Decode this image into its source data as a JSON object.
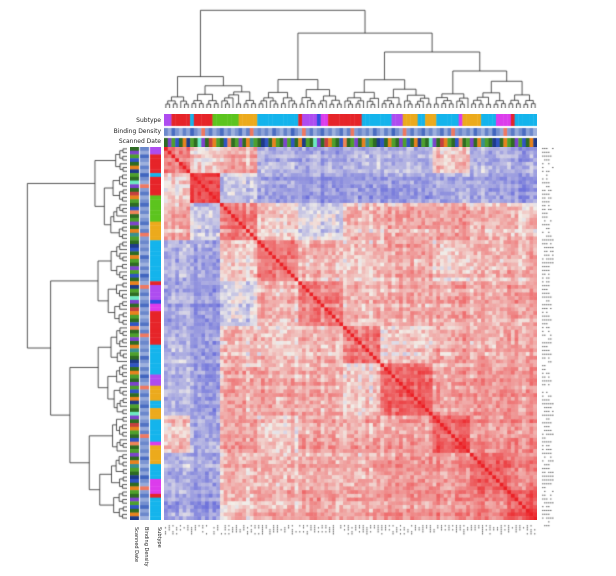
{
  "figure": {
    "kind": "clustered correlation heatmap with dendrograms and sample annotations",
    "background": "#ffffff"
  },
  "chart_data": {
    "type": "heatmap",
    "title": "",
    "xlabel": "",
    "ylabel": "",
    "n_samples": 100,
    "symmetric": true,
    "diagonal_value": 1.0,
    "value_range": [
      -1,
      1
    ],
    "colormap": {
      "negative": "#3f46d6",
      "mid": "#f2eee8",
      "positive": "#eb2025"
    },
    "cluster_sizes": [
      7,
      8,
      10,
      11,
      12,
      10,
      14,
      10,
      10,
      8
    ],
    "merge_tree": [
      [
        0,
        [
          1,
          2
        ]
      ],
      [
        [
          3,
          4
        ],
        [
          [
            5,
            6
          ],
          [
            7,
            [
              8,
              9
            ]
          ]
        ]
      ]
    ],
    "block_correlation": [
      [
        0.5,
        0.1,
        0.25,
        -0.3,
        -0.35,
        -0.25,
        -0.3,
        0.15,
        -0.3,
        -0.35
      ],
      [
        0.1,
        0.8,
        -0.2,
        -0.4,
        -0.45,
        -0.4,
        -0.45,
        -0.35,
        -0.4,
        -0.45
      ],
      [
        0.25,
        -0.2,
        0.45,
        0.1,
        -0.15,
        0.2,
        0.25,
        0.3,
        0.2,
        0.15
      ],
      [
        -0.3,
        -0.4,
        0.1,
        0.5,
        0.2,
        0.15,
        0.25,
        0.1,
        0.2,
        0.25
      ],
      [
        -0.35,
        -0.45,
        -0.15,
        0.2,
        0.5,
        0.2,
        0.25,
        0.3,
        0.25,
        0.3
      ],
      [
        -0.25,
        -0.4,
        0.2,
        0.15,
        0.2,
        0.55,
        0.1,
        0.3,
        0.25,
        0.3
      ],
      [
        -0.3,
        -0.45,
        0.25,
        0.25,
        0.25,
        0.1,
        0.6,
        0.3,
        0.35,
        0.35
      ],
      [
        0.15,
        -0.35,
        0.3,
        0.1,
        0.3,
        0.3,
        0.3,
        0.65,
        0.35,
        0.4
      ],
      [
        -0.3,
        -0.4,
        0.2,
        0.2,
        0.25,
        0.25,
        0.35,
        0.35,
        0.65,
        0.45
      ],
      [
        -0.35,
        -0.45,
        0.15,
        0.25,
        0.3,
        0.3,
        0.35,
        0.4,
        0.45,
        0.7
      ]
    ],
    "noise": {
      "seed": 7,
      "cell_amp": 0.36,
      "stripe_amp": 0.18
    },
    "annotations": {
      "subtype": {
        "label": "Subtype",
        "palette": {
          "red": "#e62429",
          "skyblue": "#14b4ec",
          "green": "#5cc41e",
          "amber": "#ecaa1c",
          "violet": "#ae4cf0",
          "magenta": "#dc3cec",
          "blue": "#2c50e0"
        },
        "runs": [
          [
            "violet",
            2
          ],
          [
            "red",
            5
          ],
          [
            "skyblue",
            1
          ],
          [
            "red",
            5
          ],
          [
            "green",
            7
          ],
          [
            "amber",
            5
          ],
          [
            "skyblue",
            11
          ],
          [
            "red",
            1
          ],
          [
            "violet",
            4
          ],
          [
            "blue",
            1
          ],
          [
            "magenta",
            2
          ],
          [
            "red",
            9
          ],
          [
            "skyblue",
            8
          ],
          [
            "violet",
            3
          ],
          [
            "amber",
            4
          ],
          [
            "skyblue",
            2
          ],
          [
            "amber",
            3
          ],
          [
            "skyblue",
            6
          ],
          [
            "magenta",
            1
          ],
          [
            "amber",
            5
          ],
          [
            "skyblue",
            4
          ],
          [
            "magenta",
            4
          ],
          [
            "red",
            1
          ],
          [
            "skyblue",
            6
          ]
        ]
      },
      "binding_density": {
        "label": "Binding Density",
        "low_color": "#c9d4ea",
        "high_color": "#1e49b4",
        "accent_color": "#f07860",
        "pattern": [
          0.55,
          0.3,
          0.75,
          0.45,
          0.25,
          0.6,
          0.35,
          0.8,
          0.5,
          0.3,
          0.98,
          0.4,
          0.65,
          0.3,
          0.5,
          0.75,
          0.35,
          0.55,
          0.25,
          0.45,
          0.7,
          0.3,
          0.6,
          0.99,
          0.4,
          0.55,
          0.35
        ]
      },
      "scanned_date": {
        "label": "Scanned Date",
        "palette": [
          "#2e6b22",
          "#4ea02c",
          "#e8821e",
          "#7c44cc",
          "#3054c4",
          "#6ceac2",
          "#ee8458",
          "#1e3a88",
          "#c44040",
          "#3a9090"
        ],
        "pattern": [
          0,
          3,
          1,
          4,
          0,
          2,
          7,
          1,
          0,
          5,
          3,
          0,
          8,
          2,
          1,
          0,
          4,
          6,
          0,
          1,
          3,
          0,
          2,
          9,
          1,
          0,
          7,
          4,
          0,
          2,
          1
        ]
      }
    },
    "axis_labels_note": "per-sample row and column tick labels rendered at illegible micro size"
  }
}
